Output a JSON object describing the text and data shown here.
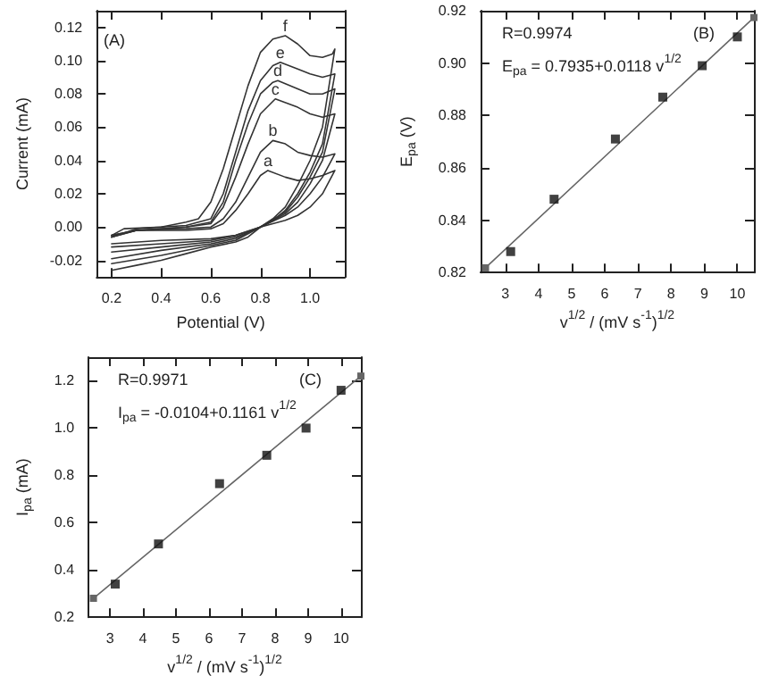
{
  "chart_data": [
    {
      "type": "line",
      "xlabel": "Potential (V)",
      "ylabel": "Current (mA)",
      "xlim": [
        0.14,
        1.14
      ],
      "ylim": [
        -0.03,
        0.13
      ],
      "xticks": [
        0.2,
        0.4,
        0.6,
        0.8,
        {
          "value": 1.0,
          "label": "1.0"
        }
      ],
      "yticks": [
        {
          "value": -0.02,
          "label": "-0.02"
        },
        {
          "value": 0,
          "label": "0.00"
        },
        {
          "value": 0.02,
          "label": "0.02"
        },
        {
          "value": 0.04,
          "label": "0.04"
        },
        {
          "value": 0.06,
          "label": "0.06"
        },
        {
          "value": 0.08,
          "label": "0.08"
        },
        {
          "value": 0.1,
          "label": "0.10"
        },
        {
          "value": 0.12,
          "label": "0.12"
        }
      ],
      "grid": false,
      "marker": "none",
      "line_style": "solid",
      "annotations": [
        "(A)"
      ],
      "series": [
        {
          "name": "a",
          "color": "#333333",
          "x": [
            0.2,
            0.3,
            0.5,
            0.6,
            0.65,
            0.7,
            0.75,
            0.8,
            0.83,
            0.9,
            0.95,
            1.0,
            1.05,
            1.1,
            1.05,
            1.0,
            0.95,
            0.9,
            0.8,
            0.7,
            0.6,
            0.4,
            0.2
          ],
          "values": [
            -0.005,
            -0.002,
            -0.002,
            -0.001,
            0.002,
            0.01,
            0.02,
            0.031,
            0.034,
            0.03,
            0.028,
            0.029,
            0.031,
            0.034,
            0.02,
            0.012,
            0.007,
            0.004,
            0.0,
            -0.005,
            -0.007,
            -0.008,
            -0.01
          ]
        },
        {
          "name": "b",
          "color": "#333333",
          "x": [
            0.2,
            0.3,
            0.5,
            0.6,
            0.65,
            0.7,
            0.75,
            0.8,
            0.85,
            0.9,
            0.95,
            1.0,
            1.05,
            1.1,
            1.05,
            1.0,
            0.95,
            0.9,
            0.8,
            0.7,
            0.6,
            0.4,
            0.2
          ],
          "values": [
            -0.005,
            -0.002,
            -0.001,
            0.0,
            0.005,
            0.015,
            0.03,
            0.045,
            0.052,
            0.05,
            0.045,
            0.043,
            0.042,
            0.044,
            0.03,
            0.02,
            0.012,
            0.007,
            0.0,
            -0.005,
            -0.008,
            -0.01,
            -0.012
          ]
        },
        {
          "name": "c",
          "color": "#333333",
          "x": [
            0.2,
            0.3,
            0.5,
            0.6,
            0.65,
            0.7,
            0.75,
            0.8,
            0.86,
            0.95,
            1.0,
            1.05,
            1.1,
            1.05,
            1.0,
            0.95,
            0.9,
            0.8,
            0.7,
            0.6,
            0.4,
            0.2
          ],
          "values": [
            -0.006,
            -0.002,
            0.0,
            0.002,
            0.012,
            0.03,
            0.05,
            0.068,
            0.077,
            0.072,
            0.068,
            0.066,
            0.068,
            0.04,
            0.026,
            0.015,
            0.008,
            0.0,
            -0.006,
            -0.009,
            -0.012,
            -0.015
          ]
        },
        {
          "name": "d",
          "color": "#333333",
          "x": [
            0.2,
            0.3,
            0.5,
            0.6,
            0.65,
            0.7,
            0.75,
            0.8,
            0.85,
            0.87,
            0.95,
            1.0,
            1.05,
            1.1,
            1.05,
            1.0,
            0.95,
            0.9,
            0.8,
            0.7,
            0.6,
            0.4,
            0.2
          ],
          "values": [
            -0.006,
            -0.002,
            0.0,
            0.003,
            0.015,
            0.04,
            0.062,
            0.08,
            0.087,
            0.088,
            0.083,
            0.08,
            0.08,
            0.083,
            0.045,
            0.03,
            0.018,
            0.009,
            0.0,
            -0.007,
            -0.01,
            -0.014,
            -0.019
          ]
        },
        {
          "name": "e",
          "color": "#333333",
          "x": [
            0.2,
            0.3,
            0.5,
            0.6,
            0.65,
            0.7,
            0.75,
            0.8,
            0.85,
            0.88,
            0.95,
            1.0,
            1.05,
            1.1,
            1.05,
            1.0,
            0.95,
            0.9,
            0.85,
            0.8,
            0.7,
            0.6,
            0.4,
            0.2
          ],
          "values": [
            -0.006,
            -0.001,
            0.001,
            0.005,
            0.02,
            0.045,
            0.07,
            0.088,
            0.097,
            0.099,
            0.095,
            0.092,
            0.09,
            0.092,
            0.05,
            0.033,
            0.02,
            0.01,
            0.004,
            0.0,
            -0.008,
            -0.011,
            -0.017,
            -0.022
          ]
        },
        {
          "name": "f",
          "color": "#333333",
          "x": [
            0.2,
            0.25,
            0.4,
            0.5,
            0.55,
            0.6,
            0.65,
            0.7,
            0.75,
            0.8,
            0.85,
            0.9,
            0.95,
            1.0,
            1.05,
            1.09,
            1.1,
            1.05,
            1.0,
            0.95,
            0.9,
            0.85,
            0.8,
            0.75,
            0.7,
            0.6,
            0.5,
            0.4,
            0.3,
            0.2
          ],
          "values": [
            -0.005,
            -0.001,
            0.0,
            0.003,
            0.005,
            0.015,
            0.035,
            0.06,
            0.085,
            0.105,
            0.113,
            0.115,
            0.11,
            0.103,
            0.102,
            0.104,
            0.107,
            0.06,
            0.04,
            0.025,
            0.012,
            0.005,
            0.0,
            -0.006,
            -0.009,
            -0.012,
            -0.016,
            -0.02,
            -0.023,
            -0.026
          ]
        }
      ]
    },
    {
      "type": "scatter",
      "xlabel": "v$^{1/2}$ / (mV s$^{-1}$)$^{1/2}$",
      "ylabel": "E$_{pa}$ (V)",
      "xlim": [
        2.25,
        10.5
      ],
      "ylim": [
        0.82,
        0.92
      ],
      "xticks": [
        3,
        4,
        5,
        6,
        7,
        8,
        9,
        10
      ],
      "yticks": [
        0.82,
        0.84,
        0.86,
        0.88,
        {
          "value": 0.9,
          "label": "0.90"
        },
        0.92
      ],
      "grid": false,
      "marker": "square",
      "line_style": "solid",
      "annotations": [
        "R=0.9974",
        "E$_{pa}$ = 0.7935+0.0118 v$^{1/2}$",
        "(B)"
      ],
      "series": [
        {
          "type": "scatter",
          "color": "#111111",
          "x": [
            3.16,
            4.47,
            6.32,
            7.75,
            8.94,
            10
          ],
          "values": [
            0.828,
            0.848,
            0.871,
            0.887,
            0.899,
            0.91
          ]
        },
        {
          "type": "line",
          "color": "#666666",
          "x": [
            2.4,
            10.5
          ],
          "values": [
            0.8218,
            0.9174
          ]
        }
      ]
    },
    {
      "type": "scatter",
      "xlabel": "v$^{1/2}$ / (mV s$^{-1}$)$^{1/2}$",
      "ylabel": "I$_{pa}$ (mA)",
      "xlim": [
        2.35,
        10.6
      ],
      "ylim": [
        0.2,
        1.3
      ],
      "xticks": [
        3,
        4,
        5,
        6,
        7,
        8,
        9,
        10
      ],
      "yticks": [
        0.2,
        0.4,
        0.6,
        0.8,
        {
          "value": 1.0,
          "label": "1.0"
        },
        1.2
      ],
      "grid": false,
      "marker": "square",
      "line_style": "solid",
      "annotations": [
        "R=0.9971",
        "I$_{pa}$ = -0.0104+0.1161 v$^{1/2}$",
        "(C)"
      ],
      "series": [
        {
          "type": "scatter",
          "color": "#111111",
          "x": [
            3.16,
            4.47,
            6.32,
            7.75,
            8.94,
            10
          ],
          "values": [
            0.34,
            0.51,
            0.765,
            0.885,
            1.0,
            1.16
          ]
        },
        {
          "type": "line",
          "color": "#666666",
          "x": [
            2.5,
            10.6
          ],
          "values": [
            0.28,
            1.22
          ]
        }
      ]
    }
  ]
}
